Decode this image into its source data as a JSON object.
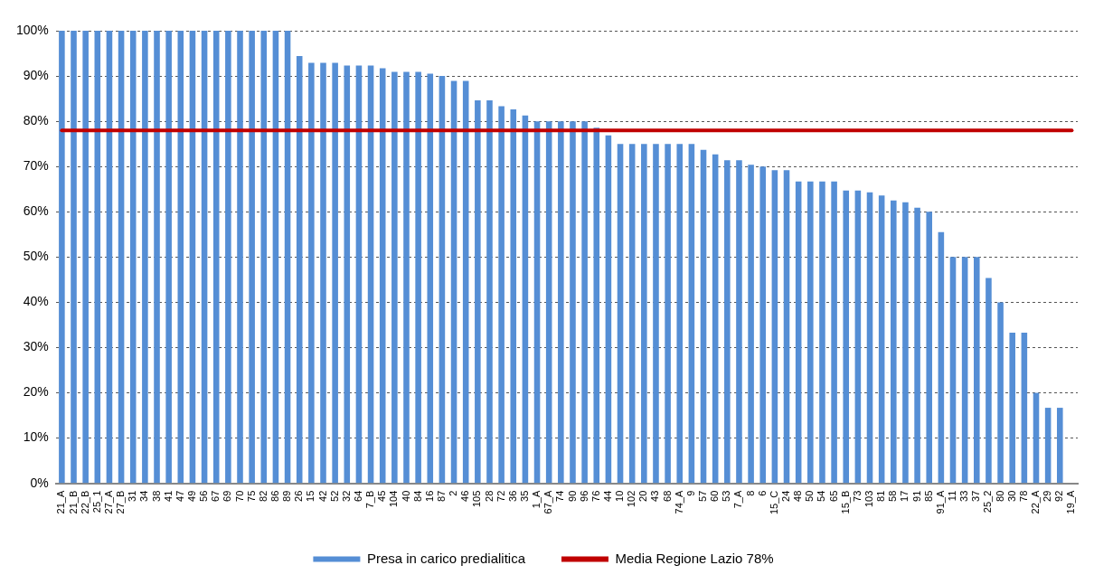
{
  "chart_data": {
    "type": "bar",
    "categories": [
      "21_A",
      "21_B",
      "22_B",
      "25_1",
      "27_A",
      "27_B",
      "31",
      "34",
      "38",
      "41",
      "47",
      "49",
      "56",
      "67",
      "69",
      "70",
      "75",
      "82",
      "86",
      "89",
      "26",
      "15",
      "42",
      "52",
      "32",
      "64",
      "7_B",
      "45",
      "104",
      "40",
      "84",
      "16",
      "87",
      "2",
      "46",
      "105",
      "28",
      "72",
      "36",
      "35",
      "1_A",
      "67_A",
      "74",
      "90",
      "96",
      "76",
      "44",
      "10",
      "102",
      "20",
      "43",
      "68",
      "74_A",
      "9",
      "57",
      "60",
      "53",
      "7_A",
      "8",
      "6",
      "15_C",
      "24",
      "48",
      "50",
      "54",
      "65",
      "15_B",
      "73",
      "103",
      "81",
      "58",
      "17",
      "91",
      "85",
      "91_A",
      "11",
      "33",
      "37",
      "25_2",
      "80",
      "30",
      "78",
      "22_A",
      "29",
      "92",
      "19_A"
    ],
    "series": [
      {
        "name": "Presa in carico predialitica",
        "color": "#558ed5",
        "values": [
          100,
          100,
          100,
          100,
          100,
          100,
          100,
          100,
          100,
          100,
          100,
          100,
          100,
          100,
          100,
          100,
          100,
          100,
          100,
          100,
          94.4,
          92.9,
          92.9,
          92.9,
          92.3,
          92.3,
          92.3,
          91.7,
          90.9,
          90.9,
          90.9,
          90.5,
          90,
          88.9,
          88.9,
          84.6,
          84.6,
          83.3,
          82.6,
          81.3,
          80,
          80,
          80,
          80,
          80,
          78.6,
          76.9,
          75,
          75,
          75,
          75,
          75,
          75,
          75,
          73.7,
          72.7,
          71.4,
          71.4,
          70.4,
          70,
          69.2,
          69.2,
          66.7,
          66.7,
          66.7,
          66.7,
          64.7,
          64.7,
          64.3,
          63.6,
          62.5,
          62.1,
          60.9,
          60,
          55.5,
          50,
          50,
          50,
          45.4,
          40,
          33.3,
          33.3,
          20,
          16.7,
          16.7,
          0
        ]
      },
      {
        "name": "Media Regione Lazio 78%",
        "type": "line",
        "color": "#c00000",
        "values": [
          78,
          78,
          78,
          78,
          78,
          78,
          78,
          78,
          78,
          78,
          78,
          78,
          78,
          78,
          78,
          78,
          78,
          78,
          78,
          78,
          78,
          78,
          78,
          78,
          78,
          78,
          78,
          78,
          78,
          78,
          78,
          78,
          78,
          78,
          78,
          78,
          78,
          78,
          78,
          78,
          78,
          78,
          78,
          78,
          78,
          78,
          78,
          78,
          78,
          78,
          78,
          78,
          78,
          78,
          78,
          78,
          78,
          78,
          78,
          78,
          78,
          78,
          78,
          78,
          78,
          78,
          78,
          78,
          78,
          78,
          78,
          78,
          78,
          78,
          78,
          78,
          78,
          78,
          78,
          78,
          78,
          78,
          78,
          78,
          78,
          78
        ]
      }
    ],
    "ylim": [
      0,
      100
    ],
    "yticks": [
      {
        "value": 0,
        "label": "0%"
      },
      {
        "value": 10,
        "label": "10%"
      },
      {
        "value": 20,
        "label": "20%"
      },
      {
        "value": 30,
        "label": "30%"
      },
      {
        "value": 40,
        "label": "40%"
      },
      {
        "value": 50,
        "label": "50%"
      },
      {
        "value": 60,
        "label": "60%"
      },
      {
        "value": 70,
        "label": "70%"
      },
      {
        "value": 80,
        "label": "80%"
      },
      {
        "value": 90,
        "label": "90%"
      },
      {
        "value": 100,
        "label": "100%"
      }
    ],
    "grid": "y",
    "legend": "bottom",
    "marker": "none"
  }
}
